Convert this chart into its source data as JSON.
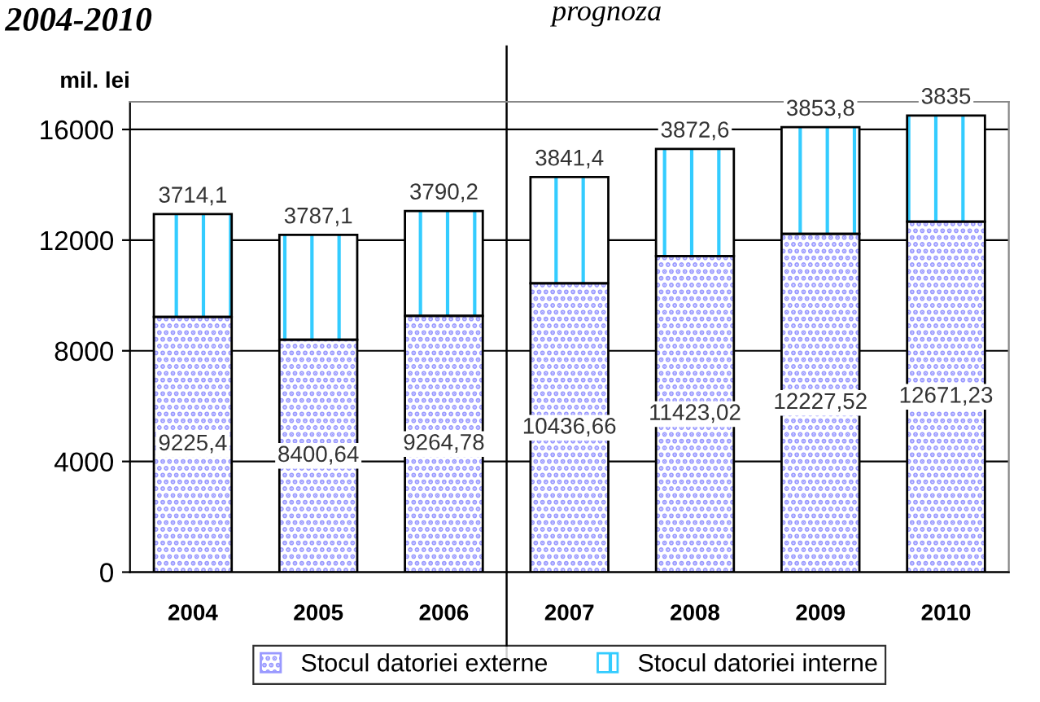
{
  "chart_data": {
    "type": "bar",
    "title": "2004-2010",
    "ylabel": "mil. lei",
    "stacked": true,
    "categories": [
      "2004",
      "2005",
      "2006",
      "2007",
      "2008",
      "2009",
      "2010"
    ],
    "series": [
      {
        "name": "Stocul datoriei externe",
        "color": "#9999ff",
        "values": [
          9225.4,
          8400.64,
          9264.78,
          10436.66,
          11423.02,
          12227.52,
          12671.23
        ],
        "value_labels": [
          "9225,4",
          "8400,64",
          "9264,78",
          "10436,66",
          "11423,02",
          "12227,52",
          "12671,23"
        ]
      },
      {
        "name": "Stocul datoriei interne",
        "color": "#33ccff",
        "values": [
          3714.1,
          3787.1,
          3790.2,
          3841.4,
          3872.6,
          3853.8,
          3835
        ],
        "value_labels": [
          "3714,1",
          "3787,1",
          "3790,2",
          "3841,4",
          "3872,6",
          "3853,8",
          "3835"
        ]
      }
    ],
    "ylim": [
      0,
      17000
    ],
    "yticks": [
      0,
      4000,
      8000,
      12000,
      16000
    ],
    "grid": "y",
    "legend": "bottom",
    "annotations": [
      "prognoza"
    ]
  }
}
